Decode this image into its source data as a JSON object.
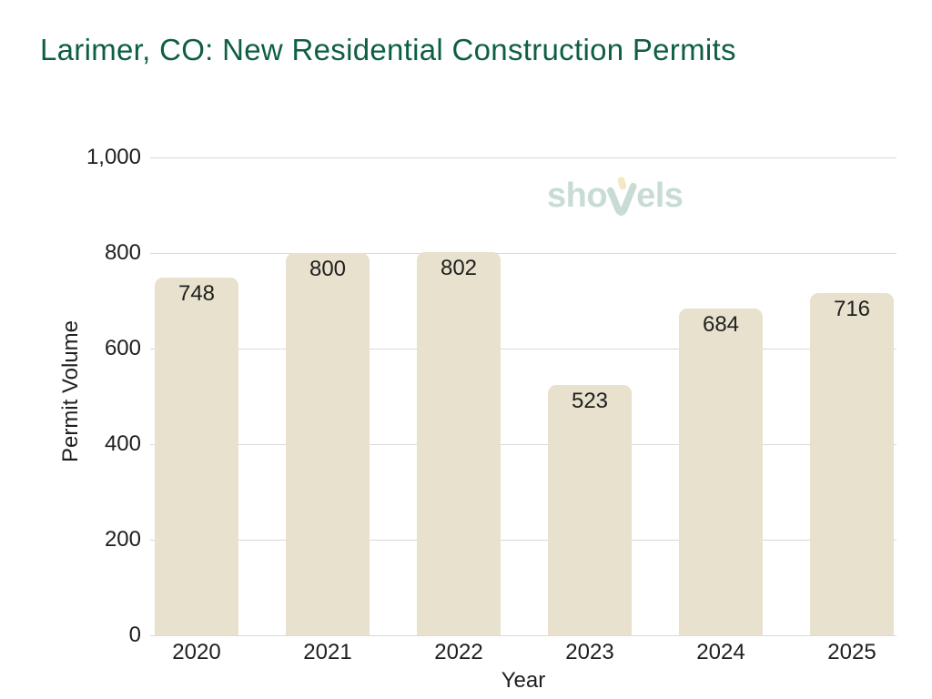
{
  "page": {
    "title": "Larimer, CO: New Residential Construction Permits"
  },
  "watermark": {
    "brand": "shovels",
    "text_before_icon": "sho",
    "text_after_icon": "els",
    "text_color": "#c8dcd4",
    "handle_color": "#f3e8c5"
  },
  "chart_data": {
    "type": "bar",
    "title": "Larimer, CO: New Residential Construction Permits",
    "categories": [
      "2020",
      "2021",
      "2022",
      "2023",
      "2024",
      "2025"
    ],
    "values": [
      748,
      800,
      802,
      523,
      684,
      716
    ],
    "xlabel": "Year",
    "ylabel": "Permit Volume",
    "ylim": [
      0,
      1000
    ],
    "yticks": [
      0,
      200,
      400,
      600,
      800,
      1000
    ],
    "ytick_labels": [
      "0",
      "200",
      "400",
      "600",
      "800",
      "1,000"
    ],
    "grid": true,
    "legend_position": "none",
    "bar_color": "#e8e1cd",
    "grid_color": "#d9d9d9",
    "title_color": "#0e5e46",
    "text_color": "#1f1f1f"
  }
}
